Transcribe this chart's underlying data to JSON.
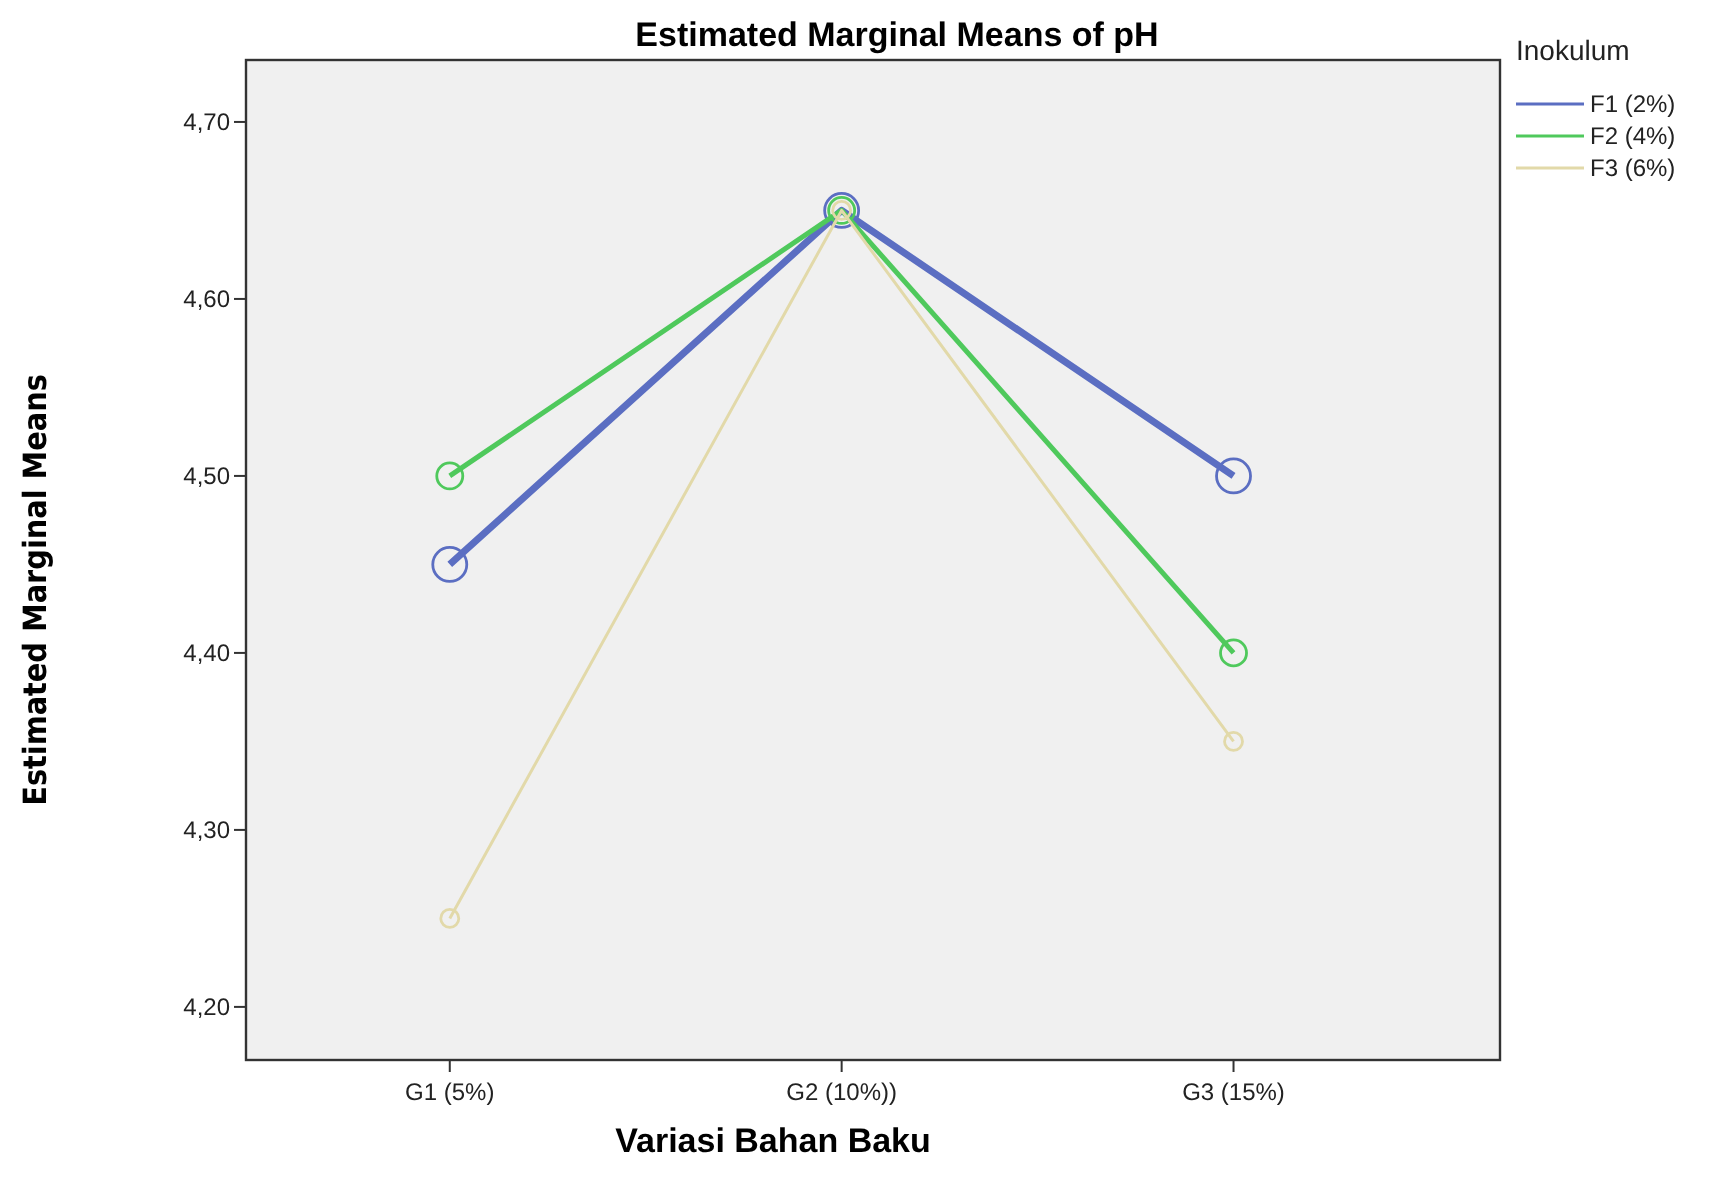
{
  "chart_data": {
    "type": "line",
    "title": "Estimated Marginal Means of pH",
    "xlabel": "Variasi Bahan Baku",
    "ylabel": "Estimated Marginal Means",
    "legend_title": "Inokulum",
    "categories": [
      "G1 (5%)",
      "G2 (10%))",
      "G3 (15%)"
    ],
    "series": [
      {
        "name": "F1 (2%)",
        "color": "#5b6ec2",
        "values": [
          4.45,
          4.65,
          4.5
        ]
      },
      {
        "name": "F2 (4%)",
        "color": "#4fc95c",
        "values": [
          4.5,
          4.65,
          4.4
        ]
      },
      {
        "name": "F3 (6%)",
        "color": "#e2d9a9",
        "values": [
          4.25,
          4.65,
          4.35
        ]
      }
    ],
    "ylim": [
      4.17,
      4.735
    ],
    "yticks": [
      {
        "value": 4.2,
        "label": "4,20"
      },
      {
        "value": 4.3,
        "label": "4,30"
      },
      {
        "value": 4.4,
        "label": "4,40"
      },
      {
        "value": 4.5,
        "label": "4,50"
      },
      {
        "value": 4.6,
        "label": "4,60"
      },
      {
        "value": 4.7,
        "label": "4,70"
      }
    ],
    "grid": false,
    "legend": "right",
    "marker": "circle",
    "line_style": "solid"
  }
}
